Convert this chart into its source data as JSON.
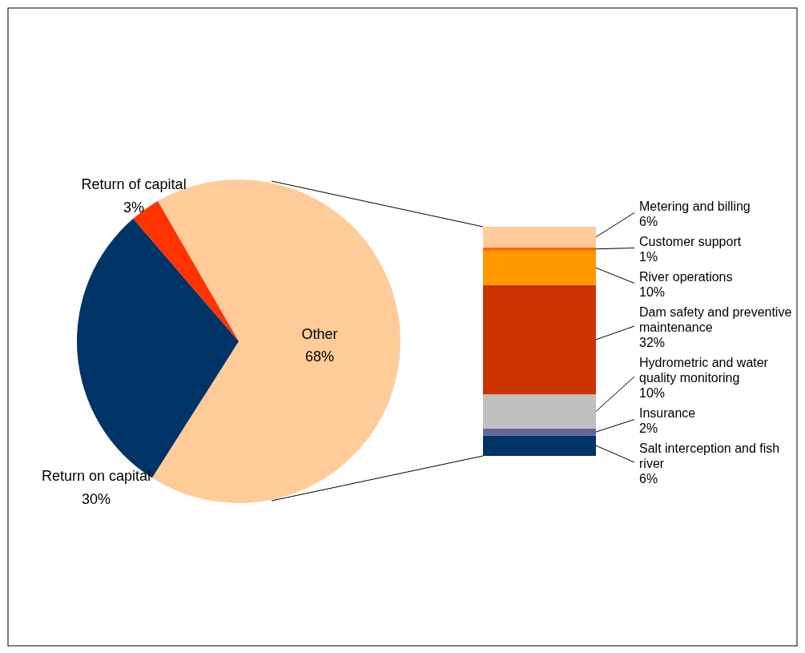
{
  "chart_data": [
    {
      "type": "pie",
      "categories": [
        "Other",
        "Return on capital",
        "Return of capital"
      ],
      "values": [
        68,
        30,
        3
      ],
      "colors": [
        "#ffcc99",
        "#003366",
        "#ff3300"
      ],
      "value_labels": [
        "68%",
        "30%",
        "3%"
      ]
    },
    {
      "type": "bar",
      "stacked": true,
      "categories": [
        null
      ],
      "series": [
        {
          "name": "Salt interception and fish river",
          "color": "#003366",
          "values": [
            6
          ],
          "value_labels": [
            "6%"
          ]
        },
        {
          "name": "Insurance",
          "color": "#666699",
          "values": [
            2
          ],
          "value_labels": [
            "2%"
          ]
        },
        {
          "name": "Hydrometric and water quality monitoring",
          "color": "#c0c0c0",
          "values": [
            10
          ],
          "value_labels": [
            "10%"
          ]
        },
        {
          "name": "Dam safety and preventive maintenance",
          "color": "#cc3300",
          "values": [
            32
          ],
          "value_labels": [
            "32%"
          ]
        },
        {
          "name": "River operations",
          "color": "#ff9900",
          "values": [
            10
          ],
          "value_labels": [
            "10%"
          ]
        },
        {
          "name": "Customer support",
          "color": "#ff6600",
          "values": [
            1
          ],
          "value_labels": [
            "1%"
          ]
        },
        {
          "name": "Metering and billing",
          "color": "#ffcc99",
          "values": [
            6
          ],
          "value_labels": [
            "6%"
          ]
        }
      ]
    }
  ]
}
